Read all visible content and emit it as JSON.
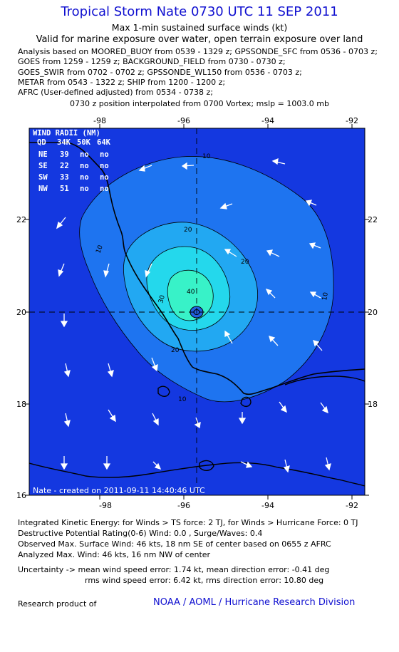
{
  "header": {
    "title": "Tropical Storm Nate 0730 UTC 11 SEP 2011",
    "subtitle1": "Max 1-min sustained surface winds (kt)",
    "subtitle2": "Valid for marine exposure over water, open terrain exposure over land"
  },
  "analysis_lines": [
    "Analysis based on MOORED_BUOY from 0539 - 1329 z; GPSSONDE_SFC from 0536 - 0703 z;",
    "GOES from 1259 - 1259 z; BACKGROUND_FIELD from 0730 - 0730 z;",
    "GOES_SWIR from 0702 - 0702 z; GPSSONDE_WL150 from 0536 - 0703 z;",
    "METAR from 0543 - 1322 z; SHIP from 1200 - 1200 z;",
    "AFRC (User-defined adjusted) from 0534 - 0738 z;"
  ],
  "vortex_line": "0730 z position interpolated from 0700 Vortex; mslp = 1003.0 mb",
  "map": {
    "lon_ticks": [
      "-98",
      "-96",
      "-94",
      "-92"
    ],
    "lat_ticks": [
      "22",
      "20",
      "18",
      "16"
    ],
    "contour_labels": [
      "10",
      "10",
      "10",
      "10",
      "20",
      "20",
      "20",
      "30",
      "40"
    ],
    "credit": "Nate - created on 2011-09-11 14:40:46 UTC",
    "colors": {
      "level0": "#1438e0",
      "level10": "#1e74f0",
      "level20": "#22a8f2",
      "level30": "#24d8ec",
      "level40": "#38f2c8",
      "land_coast": "#000000",
      "arrows": "#ffffff",
      "radii_text": "#ffffff"
    }
  },
  "wind_radii": {
    "title": "WIND RADII (NM)",
    "header": [
      "QD",
      "34K",
      "50K",
      "64K"
    ],
    "rows": [
      [
        "NE",
        "39",
        "no",
        "no"
      ],
      [
        "SE",
        "22",
        "no",
        "no"
      ],
      [
        "SW",
        "33",
        "no",
        "no"
      ],
      [
        "NW",
        "51",
        "no",
        "no"
      ]
    ]
  },
  "stats": {
    "ike": "Integrated Kinetic Energy:  for Winds > TS force: 2 TJ,  for Winds > Hurricane Force: 0 TJ",
    "dpr": "Destructive Potential Rating(0-6)   Wind: 0.0 , Surge/Waves: 0.4",
    "obs_max": "Observed Max. Surface Wind: 46 kts, 18 nm SE of center based on 0655 z AFRC",
    "ana_max": "Analyzed Max. Wind: 46 kts, 16 nm NW of center",
    "uncert1": "Uncertainty -> mean wind speed error: 1.74 kt,   mean direction error:  -0.41 deg",
    "uncert2": "rms wind speed error: 6.42 kt,   rms direction error: 10.80 deg"
  },
  "footer": {
    "left": "Research product of",
    "right": "NOAA / AOML / Hurricane Research Division"
  }
}
